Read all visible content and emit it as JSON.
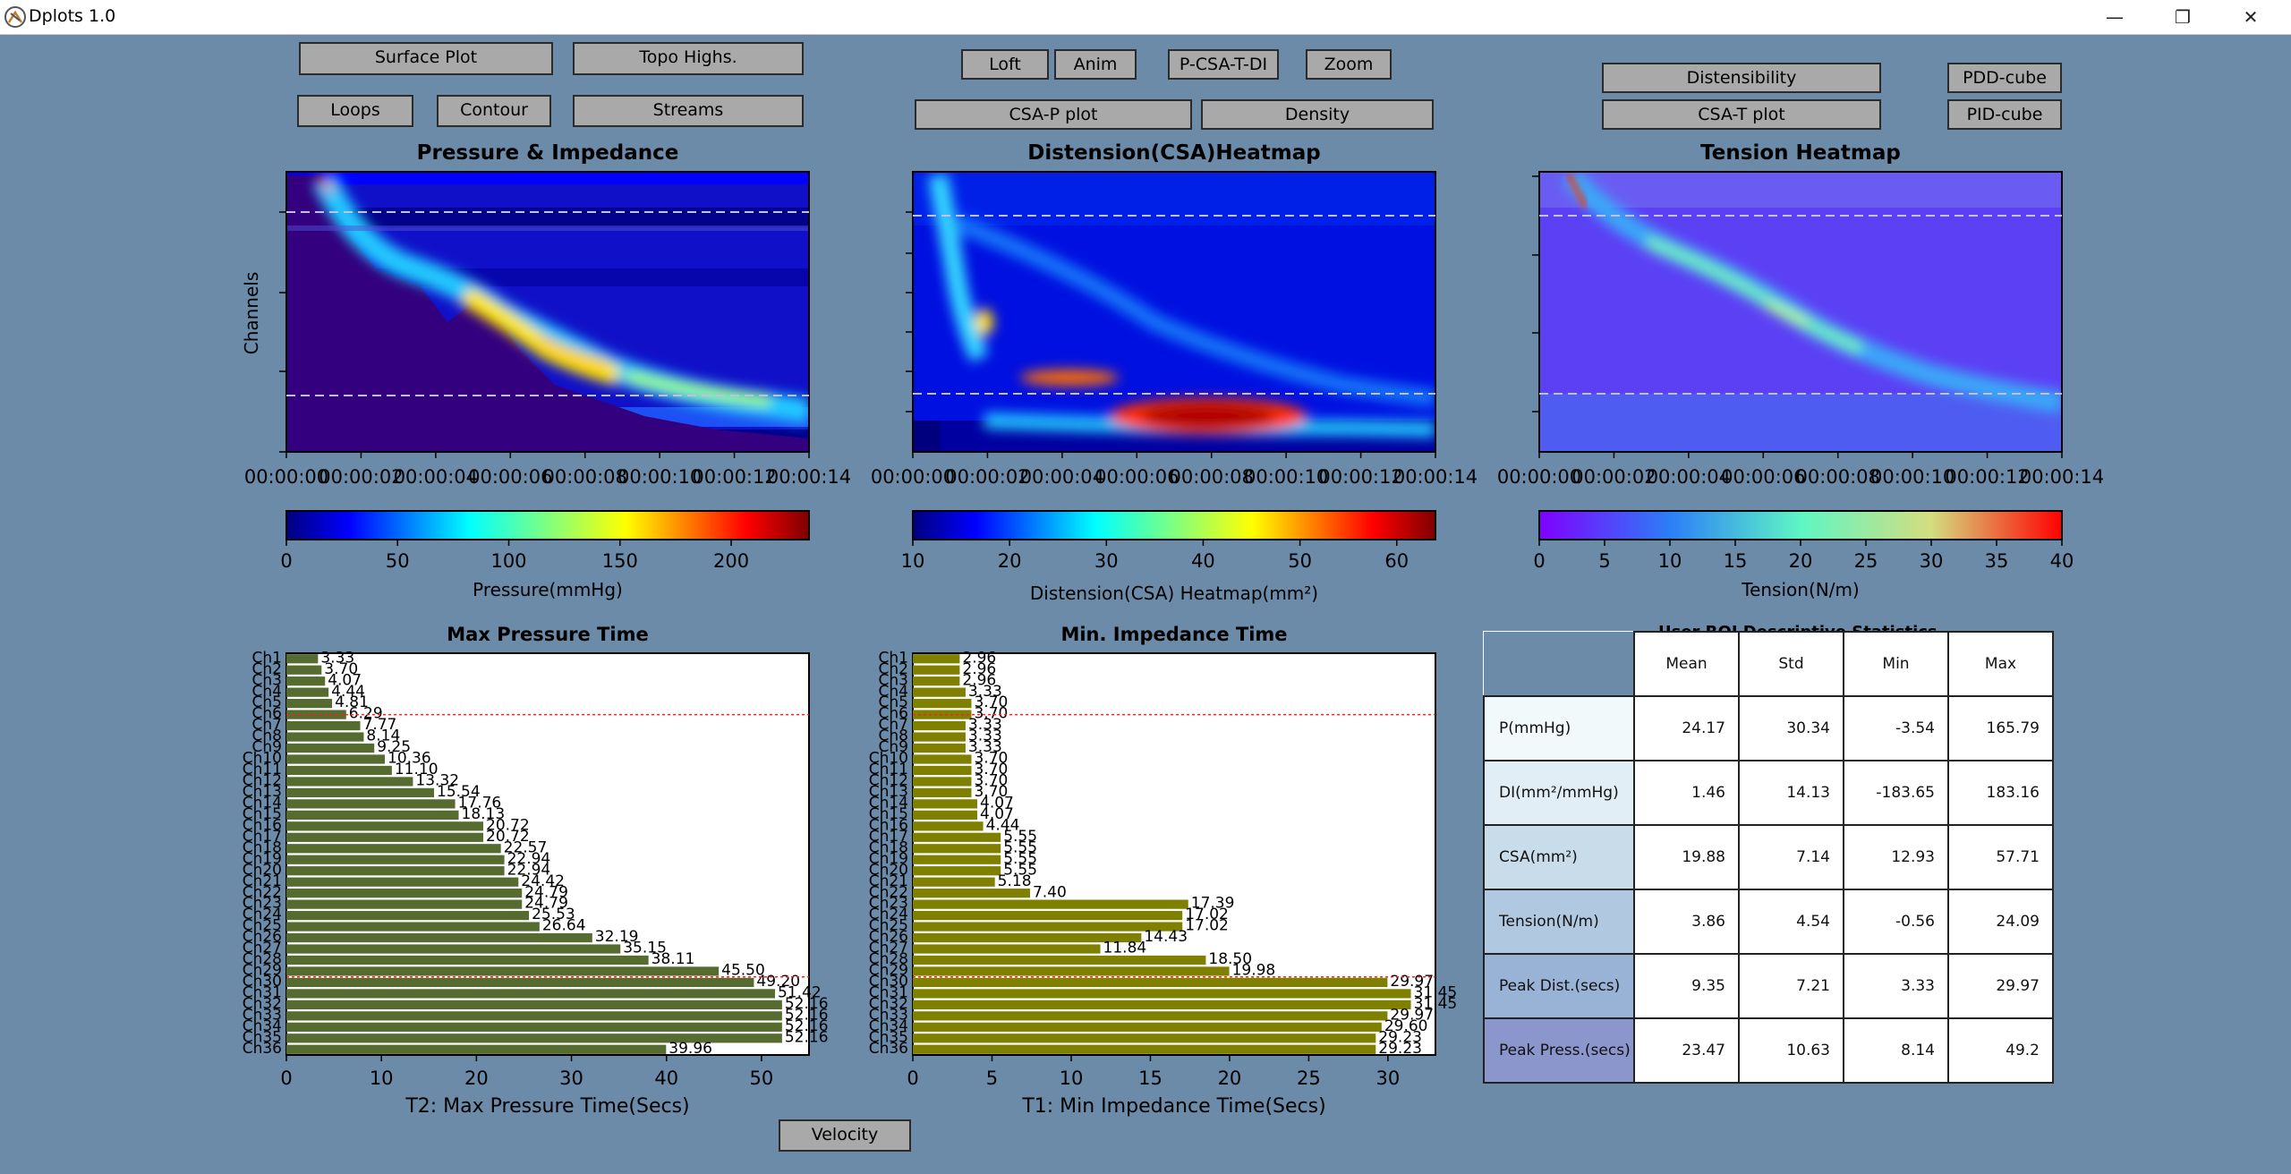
{
  "window": {
    "title": "Dplots 1.0",
    "minimize": "—",
    "restore": "❐",
    "close": "✕"
  },
  "buttons": {
    "surface_plot": "Surface Plot",
    "topo_highs": "Topo Highs.",
    "loops": "Loops",
    "contour": "Contour",
    "streams": "Streams",
    "loft": "Loft",
    "anim": "Anim",
    "pcsatdi": "P-CSA-T-DI",
    "zoom": "Zoom",
    "csap_plot": "CSA-P plot",
    "density": "Density",
    "distensibility": "Distensibility",
    "pdd_cube": "PDD-cube",
    "csat_plot": "CSA-T plot",
    "pid_cube": "PID-cube",
    "velocity": "Velocity"
  },
  "heatmaps": [
    {
      "title": "Pressure & Impedance",
      "ylabel": "Channels",
      "colorbar_label": "Pressure(mmHg)",
      "colormap": "jet",
      "range": [
        0,
        235
      ],
      "ticks": [
        0,
        50,
        100,
        150,
        200
      ]
    },
    {
      "title": "Distension(CSA)Heatmap",
      "colorbar_label": "Distension(CSA) Heatmap(mm²)",
      "colormap": "jet",
      "range": [
        10,
        64
      ],
      "ticks": [
        10,
        20,
        30,
        40,
        50,
        60
      ]
    },
    {
      "title": "Tension Heatmap",
      "colorbar_label": "Tension(N/m)",
      "colormap": "rainbow",
      "range": [
        0,
        40
      ],
      "ticks": [
        0,
        5,
        10,
        15,
        20,
        25,
        30,
        35,
        40
      ]
    }
  ],
  "time_ticks": [
    "00:00:00",
    "00:00:02",
    "00:00:04",
    "00:00:06",
    "00:00:08",
    "00:00:10",
    "00:00:12",
    "00:00:14"
  ],
  "chart_data": [
    {
      "type": "bar",
      "orientation": "horizontal",
      "title": "Max Pressure Time",
      "xlabel": "T2: Max Pressure Time(Secs)",
      "ylabel": "",
      "xlim": [
        0,
        55
      ],
      "xticks": [
        0,
        10,
        20,
        30,
        40,
        50
      ],
      "bar_color": "#556b2f",
      "categories": [
        "Ch1",
        "Ch2",
        "Ch3",
        "Ch4",
        "Ch5",
        "Ch6",
        "Ch7",
        "Ch8",
        "Ch9",
        "Ch10",
        "Ch11",
        "Ch12",
        "Ch13",
        "Ch14",
        "Ch15",
        "Ch16",
        "Ch17",
        "Ch18",
        "Ch19",
        "Ch20",
        "Ch21",
        "Ch22",
        "Ch23",
        "Ch24",
        "Ch25",
        "Ch26",
        "Ch27",
        "Ch28",
        "Ch29",
        "Ch30",
        "Ch31",
        "Ch32",
        "Ch33",
        "Ch34",
        "Ch35",
        "Ch36"
      ],
      "values": [
        3.33,
        3.7,
        4.07,
        4.44,
        4.81,
        6.29,
        7.77,
        8.14,
        9.25,
        10.36,
        11.1,
        13.32,
        15.54,
        17.76,
        18.13,
        20.72,
        20.72,
        22.57,
        22.94,
        22.94,
        24.42,
        24.79,
        24.79,
        25.53,
        26.64,
        32.19,
        35.15,
        38.11,
        45.5,
        49.2,
        51.42,
        52.16,
        52.16,
        52.16,
        52.16,
        39.96
      ],
      "value_labels": [
        "3.33",
        "3.70",
        "4.07",
        "4.44",
        "4.81",
        "6.29",
        "7.77",
        "8.14",
        "9.25",
        "10.36",
        "11.10",
        "13.32",
        "15.54",
        "17.76",
        "18.13",
        "20.72",
        "20.72",
        "22.57",
        "22.94",
        "22.94",
        "24.42",
        "24.79",
        "24.79",
        "25.53",
        "26.64",
        "32.19",
        "35.15",
        "38.11",
        "45.50",
        "49.20",
        "51.42",
        "52.16",
        "52.16",
        "52.16",
        "52.16",
        "39.96"
      ],
      "reference_lines": [
        5.5,
        29
      ]
    },
    {
      "type": "bar",
      "orientation": "horizontal",
      "title": "Min. Impedance Time",
      "xlabel": "T1: Min Impedance Time(Secs)",
      "ylabel": "",
      "xlim": [
        0,
        33
      ],
      "xticks": [
        0,
        5,
        10,
        15,
        20,
        25,
        30
      ],
      "bar_color": "#808000",
      "categories": [
        "Ch1",
        "Ch2",
        "Ch3",
        "Ch4",
        "Ch5",
        "Ch6",
        "Ch7",
        "Ch8",
        "Ch9",
        "Ch10",
        "Ch11",
        "Ch12",
        "Ch13",
        "Ch14",
        "Ch15",
        "Ch16",
        "Ch17",
        "Ch18",
        "Ch19",
        "Ch20",
        "Ch21",
        "Ch22",
        "Ch23",
        "Ch24",
        "Ch25",
        "Ch26",
        "Ch27",
        "Ch28",
        "Ch29",
        "Ch30",
        "Ch31",
        "Ch32",
        "Ch33",
        "Ch34",
        "Ch35",
        "Ch36"
      ],
      "values": [
        2.96,
        2.96,
        2.96,
        3.33,
        3.7,
        3.7,
        3.33,
        3.33,
        3.33,
        3.7,
        3.7,
        3.7,
        3.7,
        4.07,
        4.07,
        4.44,
        5.55,
        5.55,
        5.55,
        5.55,
        5.18,
        7.4,
        17.39,
        17.02,
        17.02,
        14.43,
        11.84,
        18.5,
        19.98,
        29.97,
        31.45,
        31.45,
        29.97,
        29.6,
        29.23,
        29.23
      ],
      "value_labels": [
        "2.96",
        "2.96",
        "2.96",
        "3.33",
        "3.70",
        "3.70",
        "3.33",
        "3.33",
        "3.33",
        "3.70",
        "3.70",
        "3.70",
        "3.70",
        "4.07",
        "4.07",
        "4.44",
        "5.55",
        "5.55",
        "5.55",
        "5.55",
        "5.18",
        "7.40",
        "17.39",
        "17.02",
        "17.02",
        "14.43",
        "11.84",
        "18.50",
        "19.98",
        "29.97",
        "31.45",
        "31.45",
        "29.97",
        "29.60",
        "29.23",
        "29.23"
      ],
      "reference_lines": [
        5.5,
        29
      ]
    }
  ],
  "stats_table": {
    "title": "User ROI Descriptive Statistics",
    "columns": [
      "Mean",
      "Std",
      "Min",
      "Max"
    ],
    "rows": [
      {
        "label": "P(mmHg)",
        "values": [
          "24.17",
          "30.34",
          "-3.54",
          "165.79"
        ],
        "color": "#f2f9fb"
      },
      {
        "label": "DI(mm²/mmHg)",
        "values": [
          "1.46",
          "14.13",
          "-183.65",
          "183.16"
        ],
        "color": "#e1eef6"
      },
      {
        "label": "CSA(mm²)",
        "values": [
          "19.88",
          "7.14",
          "12.93",
          "57.71"
        ],
        "color": "#c9dcea"
      },
      {
        "label": "Tension(N/m)",
        "values": [
          "3.86",
          "4.54",
          "-0.56",
          "24.09"
        ],
        "color": "#b0c9e0"
      },
      {
        "label": "Peak Dist.(secs)",
        "values": [
          "9.35",
          "7.21",
          "3.33",
          "29.97"
        ],
        "color": "#99b3d6"
      },
      {
        "label": "Peak Press.(secs)",
        "values": [
          "23.47",
          "10.63",
          "8.14",
          "49.2"
        ],
        "color": "#8b96cc"
      }
    ]
  }
}
